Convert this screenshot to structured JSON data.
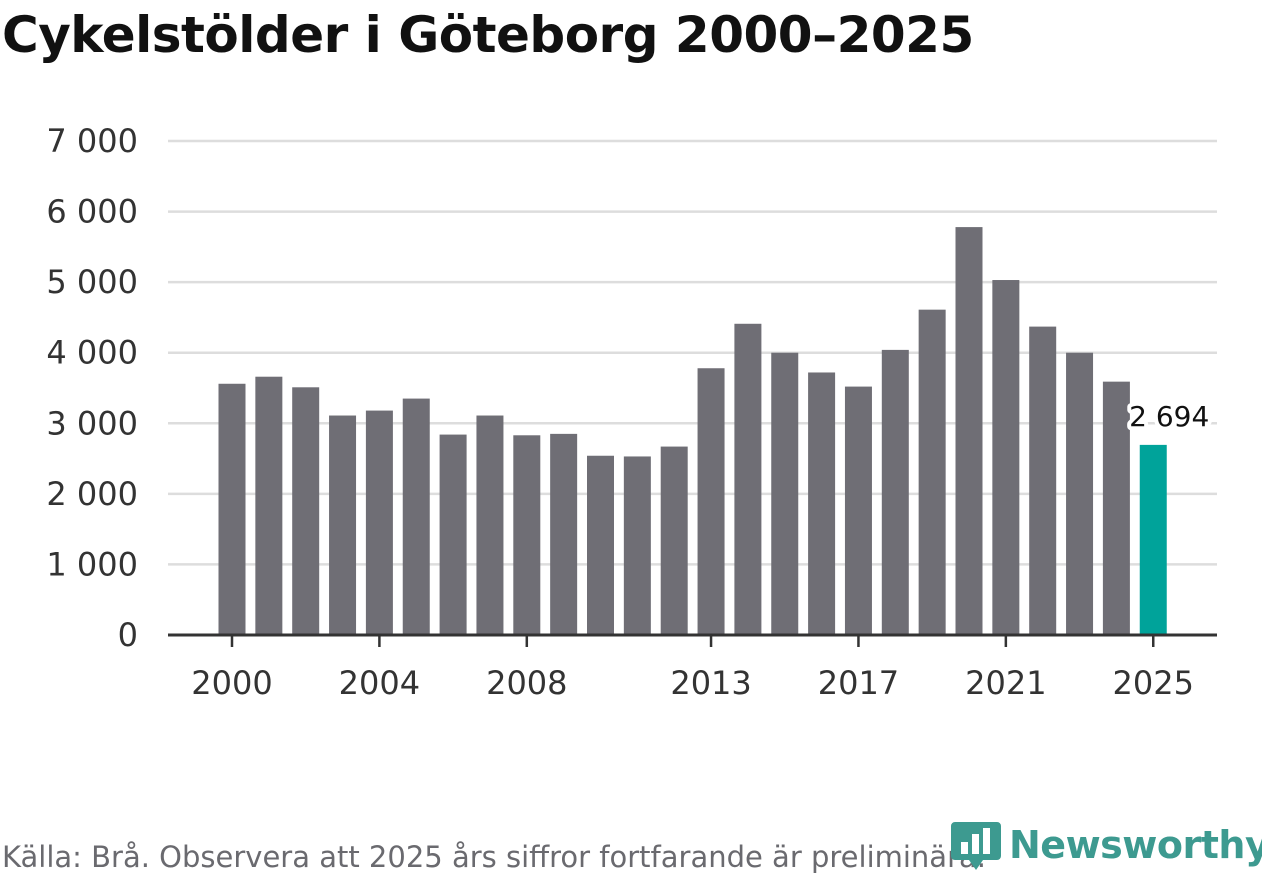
{
  "chart_data": {
    "type": "bar",
    "title": "Cykelstölder i Göteborg 2000–2025",
    "xlabel": "",
    "ylabel": "",
    "ylim": [
      0,
      7000
    ],
    "y_ticks": [
      0,
      1000,
      2000,
      3000,
      4000,
      5000,
      6000,
      7000
    ],
    "y_tick_labels": [
      "0",
      "1 000",
      "2 000",
      "3 000",
      "4 000",
      "5 000",
      "6 000",
      "7 000"
    ],
    "x_tick_labels": [
      "2000",
      "2004",
      "2008",
      "2013",
      "2017",
      "2021",
      "2025"
    ],
    "grid": true,
    "categories": [
      "2000",
      "2001",
      "2002",
      "2003",
      "2004",
      "2005",
      "2006",
      "2007",
      "2008",
      "2009",
      "2010",
      "2011",
      "2012",
      "2013",
      "2014",
      "2015",
      "2016",
      "2017",
      "2018",
      "2019",
      "2020",
      "2021",
      "2022",
      "2023",
      "2024",
      "2025"
    ],
    "values": [
      3560,
      3660,
      3510,
      3110,
      3180,
      3350,
      2840,
      3110,
      2830,
      2850,
      2540,
      2530,
      2670,
      3780,
      4410,
      4000,
      3720,
      3520,
      4040,
      4610,
      5780,
      5030,
      4370,
      4000,
      3590,
      2694
    ],
    "highlight": {
      "category": "2025",
      "value": 2694,
      "label": "2 694"
    },
    "colors": {
      "bar": "#6f6e75",
      "highlight": "#00a39a",
      "grid": "#dddddd",
      "axis": "#333333",
      "text": "#333333"
    }
  },
  "footer": {
    "source": "Källa: Brå. Observera att 2025 års siffror fortfarande är preliminära.",
    "brand": "Newsworthy"
  }
}
